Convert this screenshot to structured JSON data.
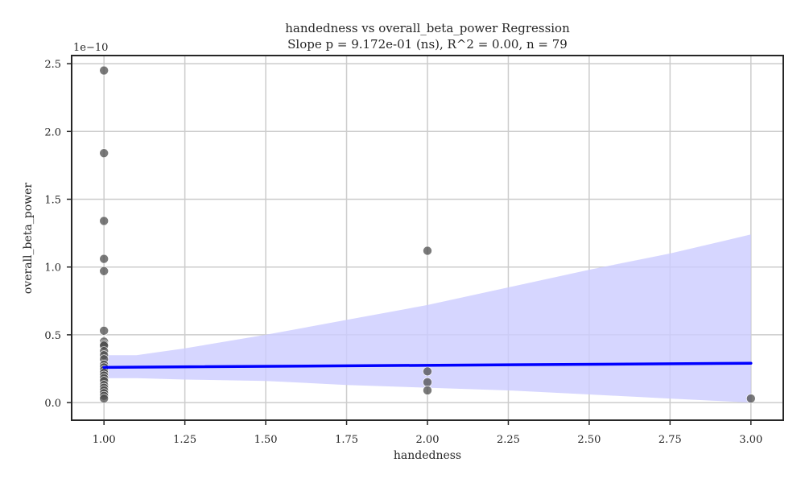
{
  "chart_data": {
    "type": "scatter",
    "title": "handedness vs overall_beta_power Regression",
    "subtitle": "Slope p = 9.172e-01 (ns), R^2 = 0.00, n = 79",
    "xlabel": "handedness",
    "ylabel": "overall_beta_power",
    "y_offset_label": "1e−10",
    "xlim": [
      0.9,
      3.1
    ],
    "ylim": [
      -0.13,
      2.56
    ],
    "xticks": [
      1.0,
      1.25,
      1.5,
      1.75,
      2.0,
      2.25,
      2.5,
      2.75,
      3.0
    ],
    "xtick_labels": [
      "1.00",
      "1.25",
      "1.50",
      "1.75",
      "2.00",
      "2.25",
      "2.50",
      "2.75",
      "3.00"
    ],
    "yticks": [
      0.0,
      0.5,
      1.0,
      1.5,
      2.0,
      2.5
    ],
    "ytick_labels": [
      "0.0",
      "0.5",
      "1.0",
      "1.5",
      "2.0",
      "2.5"
    ],
    "grid": true,
    "colors": {
      "points": "#4d4d4d",
      "regression_line": "#0000ff",
      "confidence_band": "#ccccff",
      "grid": "#cccccc",
      "frame": "#262626"
    },
    "series": [
      {
        "kind": "points",
        "x": [
          1,
          1,
          1,
          1,
          1,
          1,
          1,
          1,
          1,
          1,
          1,
          1,
          1,
          1,
          1,
          1,
          1,
          1,
          1,
          1,
          1,
          1,
          1,
          1,
          1,
          2,
          2,
          2,
          2,
          3
        ],
        "y": [
          2.45,
          1.84,
          1.34,
          1.06,
          0.97,
          0.53,
          0.45,
          0.43,
          0.42,
          0.38,
          0.35,
          0.32,
          0.28,
          0.26,
          0.24,
          0.22,
          0.2,
          0.18,
          0.16,
          0.13,
          0.11,
          0.09,
          0.07,
          0.05,
          0.03,
          1.12,
          0.23,
          0.15,
          0.09,
          0.03
        ]
      },
      {
        "kind": "regression_line",
        "x": [
          1.0,
          3.0
        ],
        "y": [
          0.26,
          0.29
        ]
      },
      {
        "kind": "confidence_band",
        "x": [
          1.0,
          1.1,
          1.25,
          1.5,
          1.75,
          2.0,
          2.25,
          2.5,
          2.75,
          3.0
        ],
        "upper": [
          0.35,
          0.35,
          0.4,
          0.5,
          0.61,
          0.72,
          0.85,
          0.98,
          1.1,
          1.24
        ],
        "lower": [
          0.18,
          0.18,
          0.17,
          0.16,
          0.13,
          0.11,
          0.09,
          0.06,
          0.03,
          0.0
        ]
      }
    ]
  }
}
